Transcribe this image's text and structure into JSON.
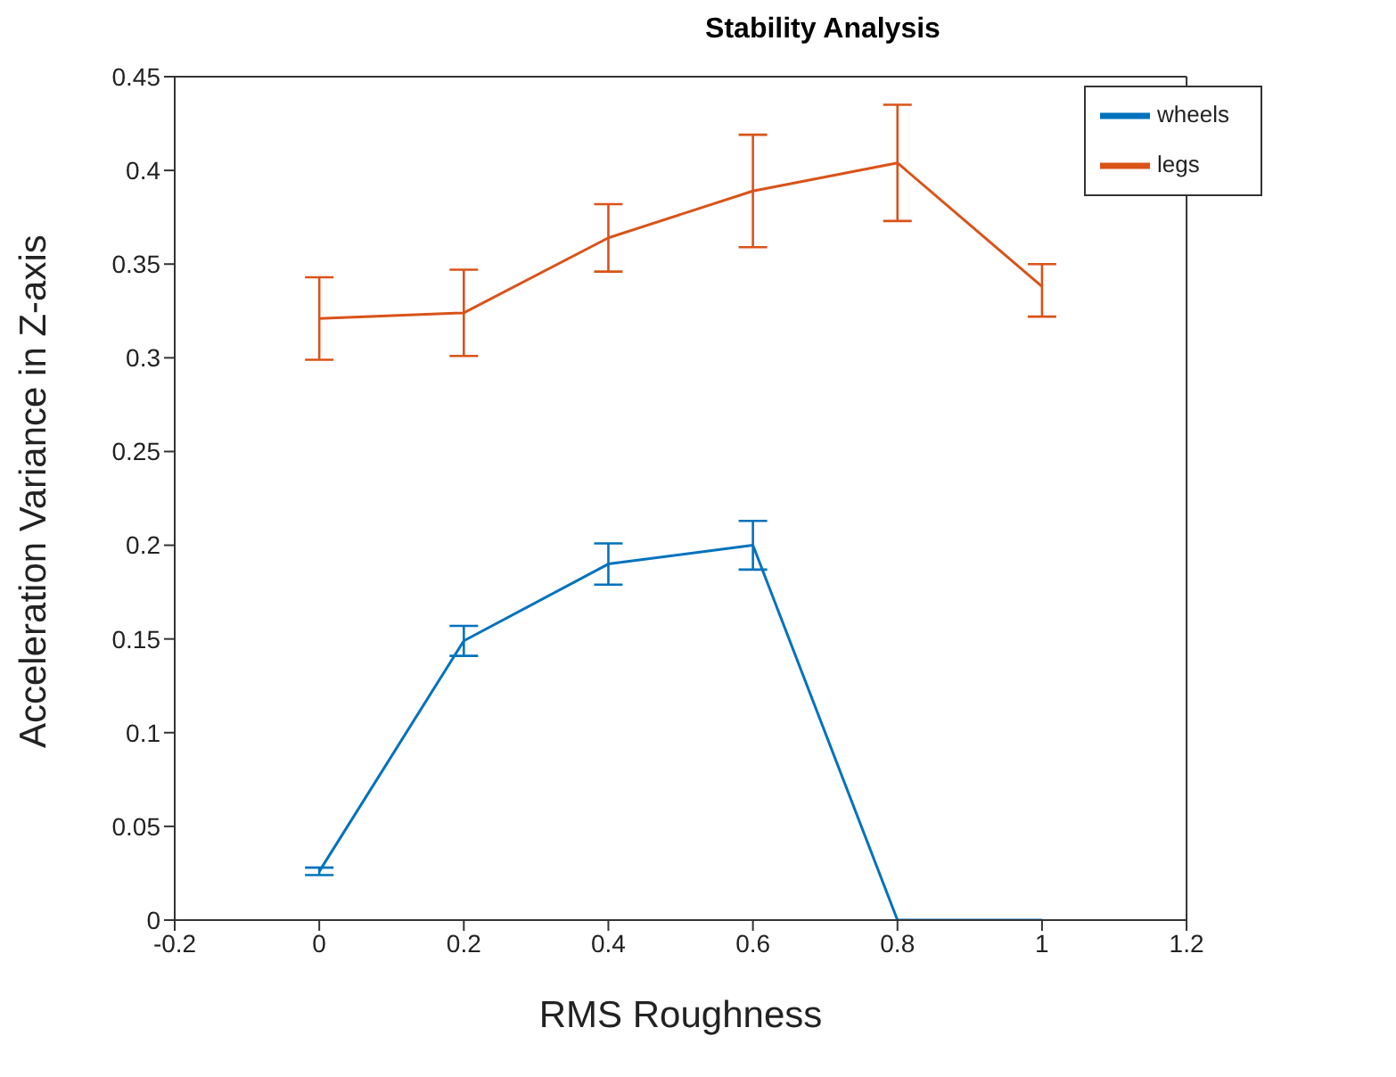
{
  "chart_data": {
    "type": "line",
    "title": "Stability Analysis",
    "xlabel": "RMS Roughness",
    "ylabel": "Acceleration Variance in Z-axis",
    "x": [
      0,
      0.2,
      0.4,
      0.6,
      0.8,
      1
    ],
    "series": [
      {
        "name": "wheels",
        "color": "#0072bd",
        "values": [
          0.026,
          0.149,
          0.19,
          0.2,
          0,
          0
        ],
        "errors": [
          0.002,
          0.008,
          0.011,
          0.013,
          null,
          null
        ]
      },
      {
        "name": "legs",
        "color": "#d95319",
        "values": [
          0.321,
          0.324,
          0.364,
          0.389,
          0.404,
          0.338
        ],
        "errors": [
          [
            0.299,
            0.343
          ],
          [
            0.301,
            0.347
          ],
          [
            0.346,
            0.382
          ],
          [
            0.359,
            0.419
          ],
          [
            0.373,
            0.435
          ],
          [
            0.322,
            0.35
          ]
        ]
      }
    ],
    "xlim": [
      -0.2,
      1.2
    ],
    "xticks": [
      -0.2,
      0,
      0.2,
      0.4,
      0.6,
      0.8,
      1,
      1.2
    ],
    "ylim": [
      0,
      0.45
    ],
    "yticks": [
      0,
      0.05,
      0.1,
      0.15,
      0.2,
      0.25,
      0.3,
      0.35,
      0.4,
      0.45
    ],
    "legend": "top right",
    "grid": false,
    "marker": "none",
    "line_style": "solid"
  }
}
